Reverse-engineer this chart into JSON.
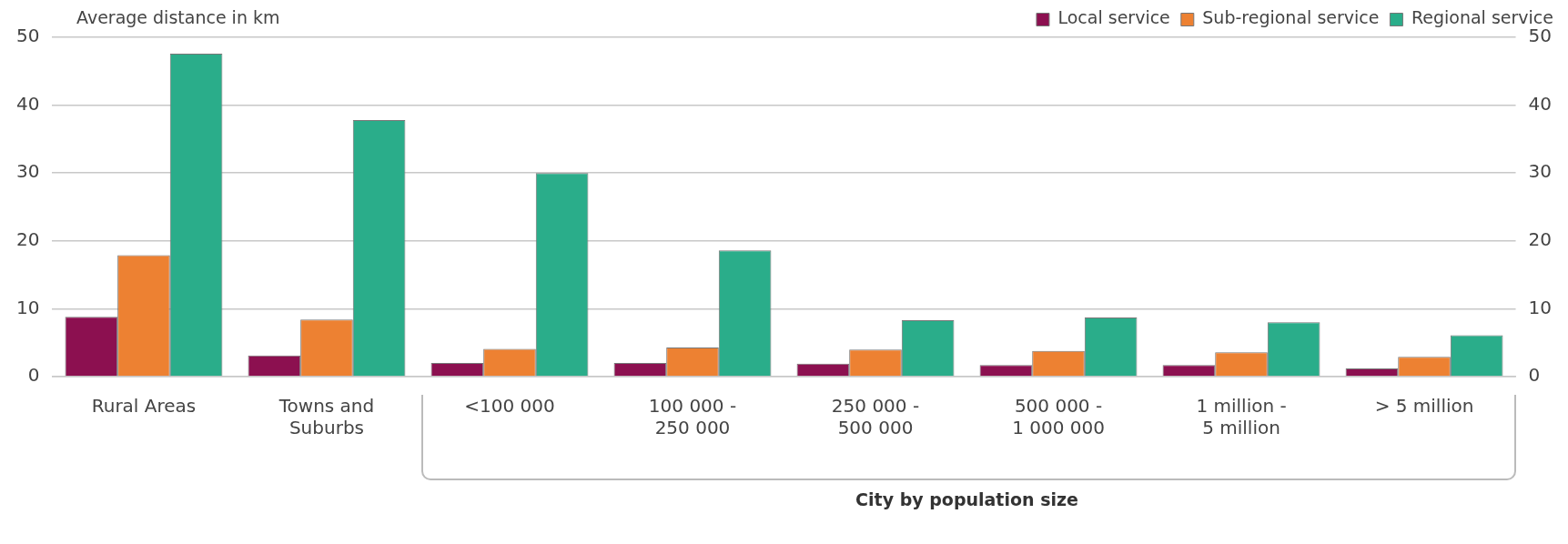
{
  "chart_data": {
    "type": "bar",
    "ylabel": "Average distance in km",
    "xlabel": "City by population size",
    "categories": [
      "Rural Areas",
      "Towns and\nSuburbs",
      "<100 000",
      "100 000 -\n250 000",
      "250 000 -\n500 000",
      "500 000 -\n1 000 000",
      "1 million -\n5 million",
      "> 5 million"
    ],
    "series": [
      {
        "name": "Local service",
        "color": "#8c1050",
        "values": [
          8.8,
          3.1,
          2.0,
          2.0,
          1.9,
          1.7,
          1.7,
          1.2
        ]
      },
      {
        "name": "Sub-regional service",
        "color": "#ed8132",
        "values": [
          17.9,
          8.4,
          4.1,
          4.3,
          4.0,
          3.8,
          3.6,
          2.9
        ]
      },
      {
        "name": "Regional service",
        "color": "#2aad8a",
        "values": [
          47.6,
          37.8,
          30.0,
          18.6,
          8.3,
          8.7,
          8.0,
          6.1
        ]
      }
    ],
    "ylim": [
      0,
      50
    ],
    "yticks": [
      0,
      10,
      20,
      30,
      40,
      50
    ],
    "y2lim": [
      0,
      50
    ],
    "y2ticks": [
      0,
      10,
      20,
      30,
      40,
      50
    ],
    "grid": "y",
    "legend": "top right"
  }
}
